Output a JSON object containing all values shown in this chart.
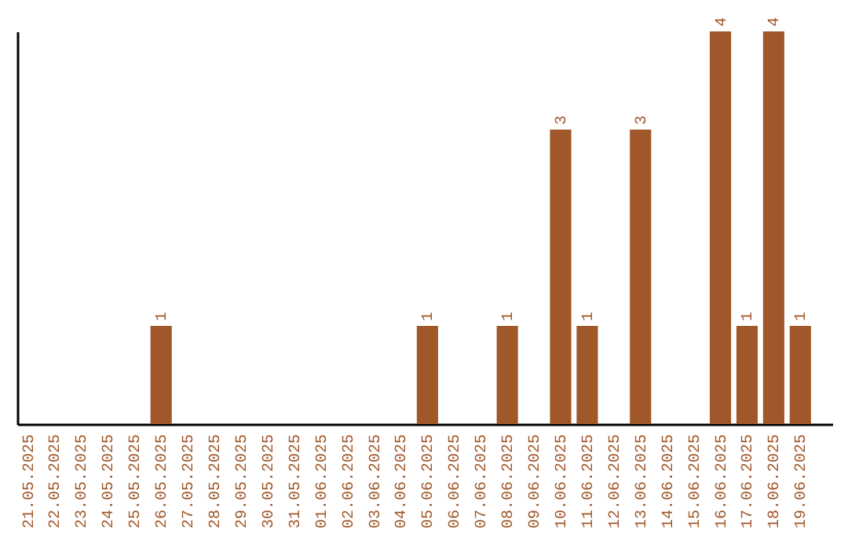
{
  "chart_data": {
    "type": "bar",
    "categories": [
      "21.05.2025",
      "22.05.2025",
      "23.05.2025",
      "24.05.2025",
      "25.05.2025",
      "26.05.2025",
      "27.05.2025",
      "28.05.2025",
      "29.05.2025",
      "30.05.2025",
      "31.05.2025",
      "01.06.2025",
      "02.06.2025",
      "03.06.2025",
      "04.06.2025",
      "05.06.2025",
      "06.06.2025",
      "07.06.2025",
      "08.06.2025",
      "09.06.2025",
      "10.06.2025",
      "11.06.2025",
      "12.06.2025",
      "13.06.2025",
      "14.06.2025",
      "15.06.2025",
      "16.06.2025",
      "17.06.2025",
      "18.06.2025",
      "19.06.2025"
    ],
    "values": [
      0,
      0,
      0,
      0,
      0,
      1,
      0,
      0,
      0,
      0,
      0,
      0,
      0,
      0,
      0,
      1,
      0,
      0,
      1,
      0,
      3,
      1,
      0,
      3,
      0,
      0,
      4,
      1,
      4,
      1
    ],
    "value_labels": [
      null,
      null,
      null,
      null,
      null,
      "1",
      null,
      null,
      null,
      null,
      null,
      null,
      null,
      null,
      null,
      "1",
      null,
      null,
      "1",
      null,
      "3",
      "1",
      null,
      "3",
      null,
      null,
      "4",
      "1",
      "4",
      "1"
    ],
    "color": "#a0582a",
    "grid": false
  }
}
